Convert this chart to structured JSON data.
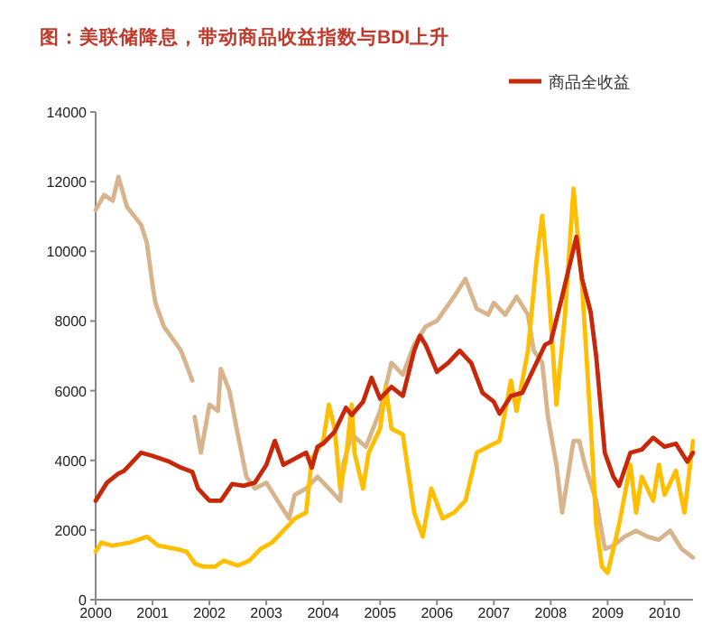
{
  "chart_data": {
    "type": "line",
    "title": "图：美联储降息，带动商品收益指数与BDI上升",
    "xlim": [
      2000,
      2010.5
    ],
    "xticks": [
      2000,
      2001,
      2002,
      2003,
      2004,
      2005,
      2006,
      2007,
      2008,
      2009,
      2010
    ],
    "ylim": [
      0,
      14000
    ],
    "yticks": [
      0,
      2000,
      4000,
      6000,
      8000,
      10000,
      12000,
      14000
    ],
    "legend": "top right",
    "grid": false,
    "marker": "none",
    "line_style": "solid",
    "series": [
      {
        "name": "商品全收益",
        "color": "#c8280a",
        "x": [
          2000.0,
          2000.2,
          2000.4,
          2000.5,
          2000.8,
          2001.0,
          2001.3,
          2001.5,
          2001.7,
          2001.8,
          2002.0,
          2002.2,
          2002.4,
          2002.6,
          2002.8,
          2003.0,
          2003.15,
          2003.3,
          2003.5,
          2003.7,
          2003.8,
          2003.9,
          2004.0,
          2004.2,
          2004.4,
          2004.5,
          2004.7,
          2004.85,
          2005.0,
          2005.2,
          2005.4,
          2005.6,
          2005.7,
          2005.8,
          2006.0,
          2006.2,
          2006.4,
          2006.5,
          2006.6,
          2006.8,
          2007.0,
          2007.1,
          2007.3,
          2007.5,
          2007.7,
          2007.9,
          2008.0,
          2008.2,
          2008.35,
          2008.45,
          2008.55,
          2008.7,
          2008.8,
          2008.95,
          2009.1,
          2009.2,
          2009.4,
          2009.6,
          2009.8,
          2010.0,
          2010.2,
          2010.4,
          2010.5
        ],
        "values": [
          2840,
          3360,
          3620,
          3700,
          4220,
          4130,
          3960,
          3790,
          3670,
          3190,
          2840,
          2840,
          3320,
          3270,
          3360,
          3870,
          4560,
          3870,
          4050,
          4220,
          3790,
          4390,
          4480,
          4820,
          5510,
          5300,
          5680,
          6370,
          5770,
          6110,
          5850,
          7150,
          7580,
          7320,
          6540,
          6800,
          7150,
          6970,
          6800,
          5940,
          5680,
          5340,
          5850,
          5940,
          6630,
          7320,
          7400,
          8700,
          9730,
          10420,
          9210,
          8270,
          6970,
          4220,
          3530,
          3270,
          4220,
          4310,
          4650,
          4390,
          4480,
          3960,
          4220
        ]
      },
      {
        "color": "#d8b48c",
        "x": [
          2000.0,
          2000.15,
          2000.3,
          2000.4,
          2000.55,
          2000.8,
          2000.9,
          2001.0,
          2001.05,
          2001.2,
          2001.5,
          2001.7,
          2001.72,
          2001.74,
          2001.85,
          2002.0,
          2002.15,
          2002.2,
          2002.35,
          2002.5,
          2002.65,
          2002.8,
          2003.0,
          2003.2,
          2003.4,
          2003.5,
          2003.7,
          2003.9,
          2004.1,
          2004.3,
          2004.35,
          2004.5,
          2004.75,
          2005.0,
          2005.2,
          2005.4,
          2005.6,
          2005.8,
          2006.0,
          2006.3,
          2006.5,
          2006.7,
          2006.9,
          2007.0,
          2007.2,
          2007.4,
          2007.6,
          2007.7,
          2007.85,
          2007.95,
          2008.1,
          2008.2,
          2008.4,
          2008.5,
          2008.6,
          2008.8,
          2008.95,
          2009.1,
          2009.3,
          2009.5,
          2009.7,
          2009.9,
          2010.1,
          2010.3,
          2010.5
        ],
        "values": [
          11190,
          11620,
          11450,
          12140,
          11280,
          10760,
          10250,
          9040,
          8520,
          7840,
          7150,
          6290,
          null,
          5250,
          4220,
          5600,
          5420,
          6630,
          6000,
          4740,
          3530,
          3190,
          3360,
          2840,
          2330,
          3010,
          3190,
          3530,
          3190,
          2840,
          3870,
          4740,
          4390,
          5420,
          6800,
          6460,
          7320,
          7840,
          8010,
          8700,
          9210,
          8350,
          8180,
          8520,
          8180,
          8700,
          8180,
          7150,
          6800,
          5250,
          3870,
          2500,
          4560,
          4560,
          3870,
          2840,
          1460,
          1550,
          1810,
          1980,
          1810,
          1720,
          1980,
          1460,
          1210
        ]
      },
      {
        "color": "#ffbf00",
        "x": [
          2000.0,
          2000.1,
          2000.3,
          2000.6,
          2000.9,
          2001.1,
          2001.4,
          2001.6,
          2001.75,
          2001.9,
          2002.1,
          2002.25,
          2002.5,
          2002.7,
          2002.9,
          2003.1,
          2003.3,
          2003.5,
          2003.7,
          2003.8,
          2004.0,
          2004.1,
          2004.2,
          2004.3,
          2004.4,
          2004.5,
          2004.55,
          2004.7,
          2004.8,
          2005.0,
          2005.1,
          2005.2,
          2005.4,
          2005.6,
          2005.75,
          2005.9,
          2006.1,
          2006.3,
          2006.5,
          2006.7,
          2006.9,
          2007.1,
          2007.3,
          2007.4,
          2007.6,
          2007.75,
          2007.85,
          2007.95,
          2008.1,
          2008.25,
          2008.4,
          2008.55,
          2008.7,
          2008.8,
          2008.9,
          2009.0,
          2009.2,
          2009.4,
          2009.5,
          2009.6,
          2009.8,
          2009.9,
          2010.0,
          2010.2,
          2010.35,
          2010.5
        ],
        "values": [
          1380,
          1640,
          1550,
          1640,
          1810,
          1550,
          1460,
          1380,
          1030,
          950,
          950,
          1120,
          980,
          1120,
          1460,
          1640,
          1980,
          2330,
          2500,
          4050,
          4560,
          5600,
          4910,
          3190,
          4050,
          5600,
          4220,
          3190,
          4220,
          4910,
          6110,
          4910,
          4740,
          2500,
          1810,
          3190,
          2330,
          2500,
          2840,
          4220,
          4390,
          4560,
          6290,
          5420,
          7150,
          9730,
          11020,
          9210,
          5600,
          8180,
          11800,
          9040,
          5080,
          2150,
          950,
          770,
          2150,
          3870,
          2500,
          3530,
          2840,
          3870,
          3010,
          3700,
          2500,
          4560
        ]
      }
    ]
  }
}
